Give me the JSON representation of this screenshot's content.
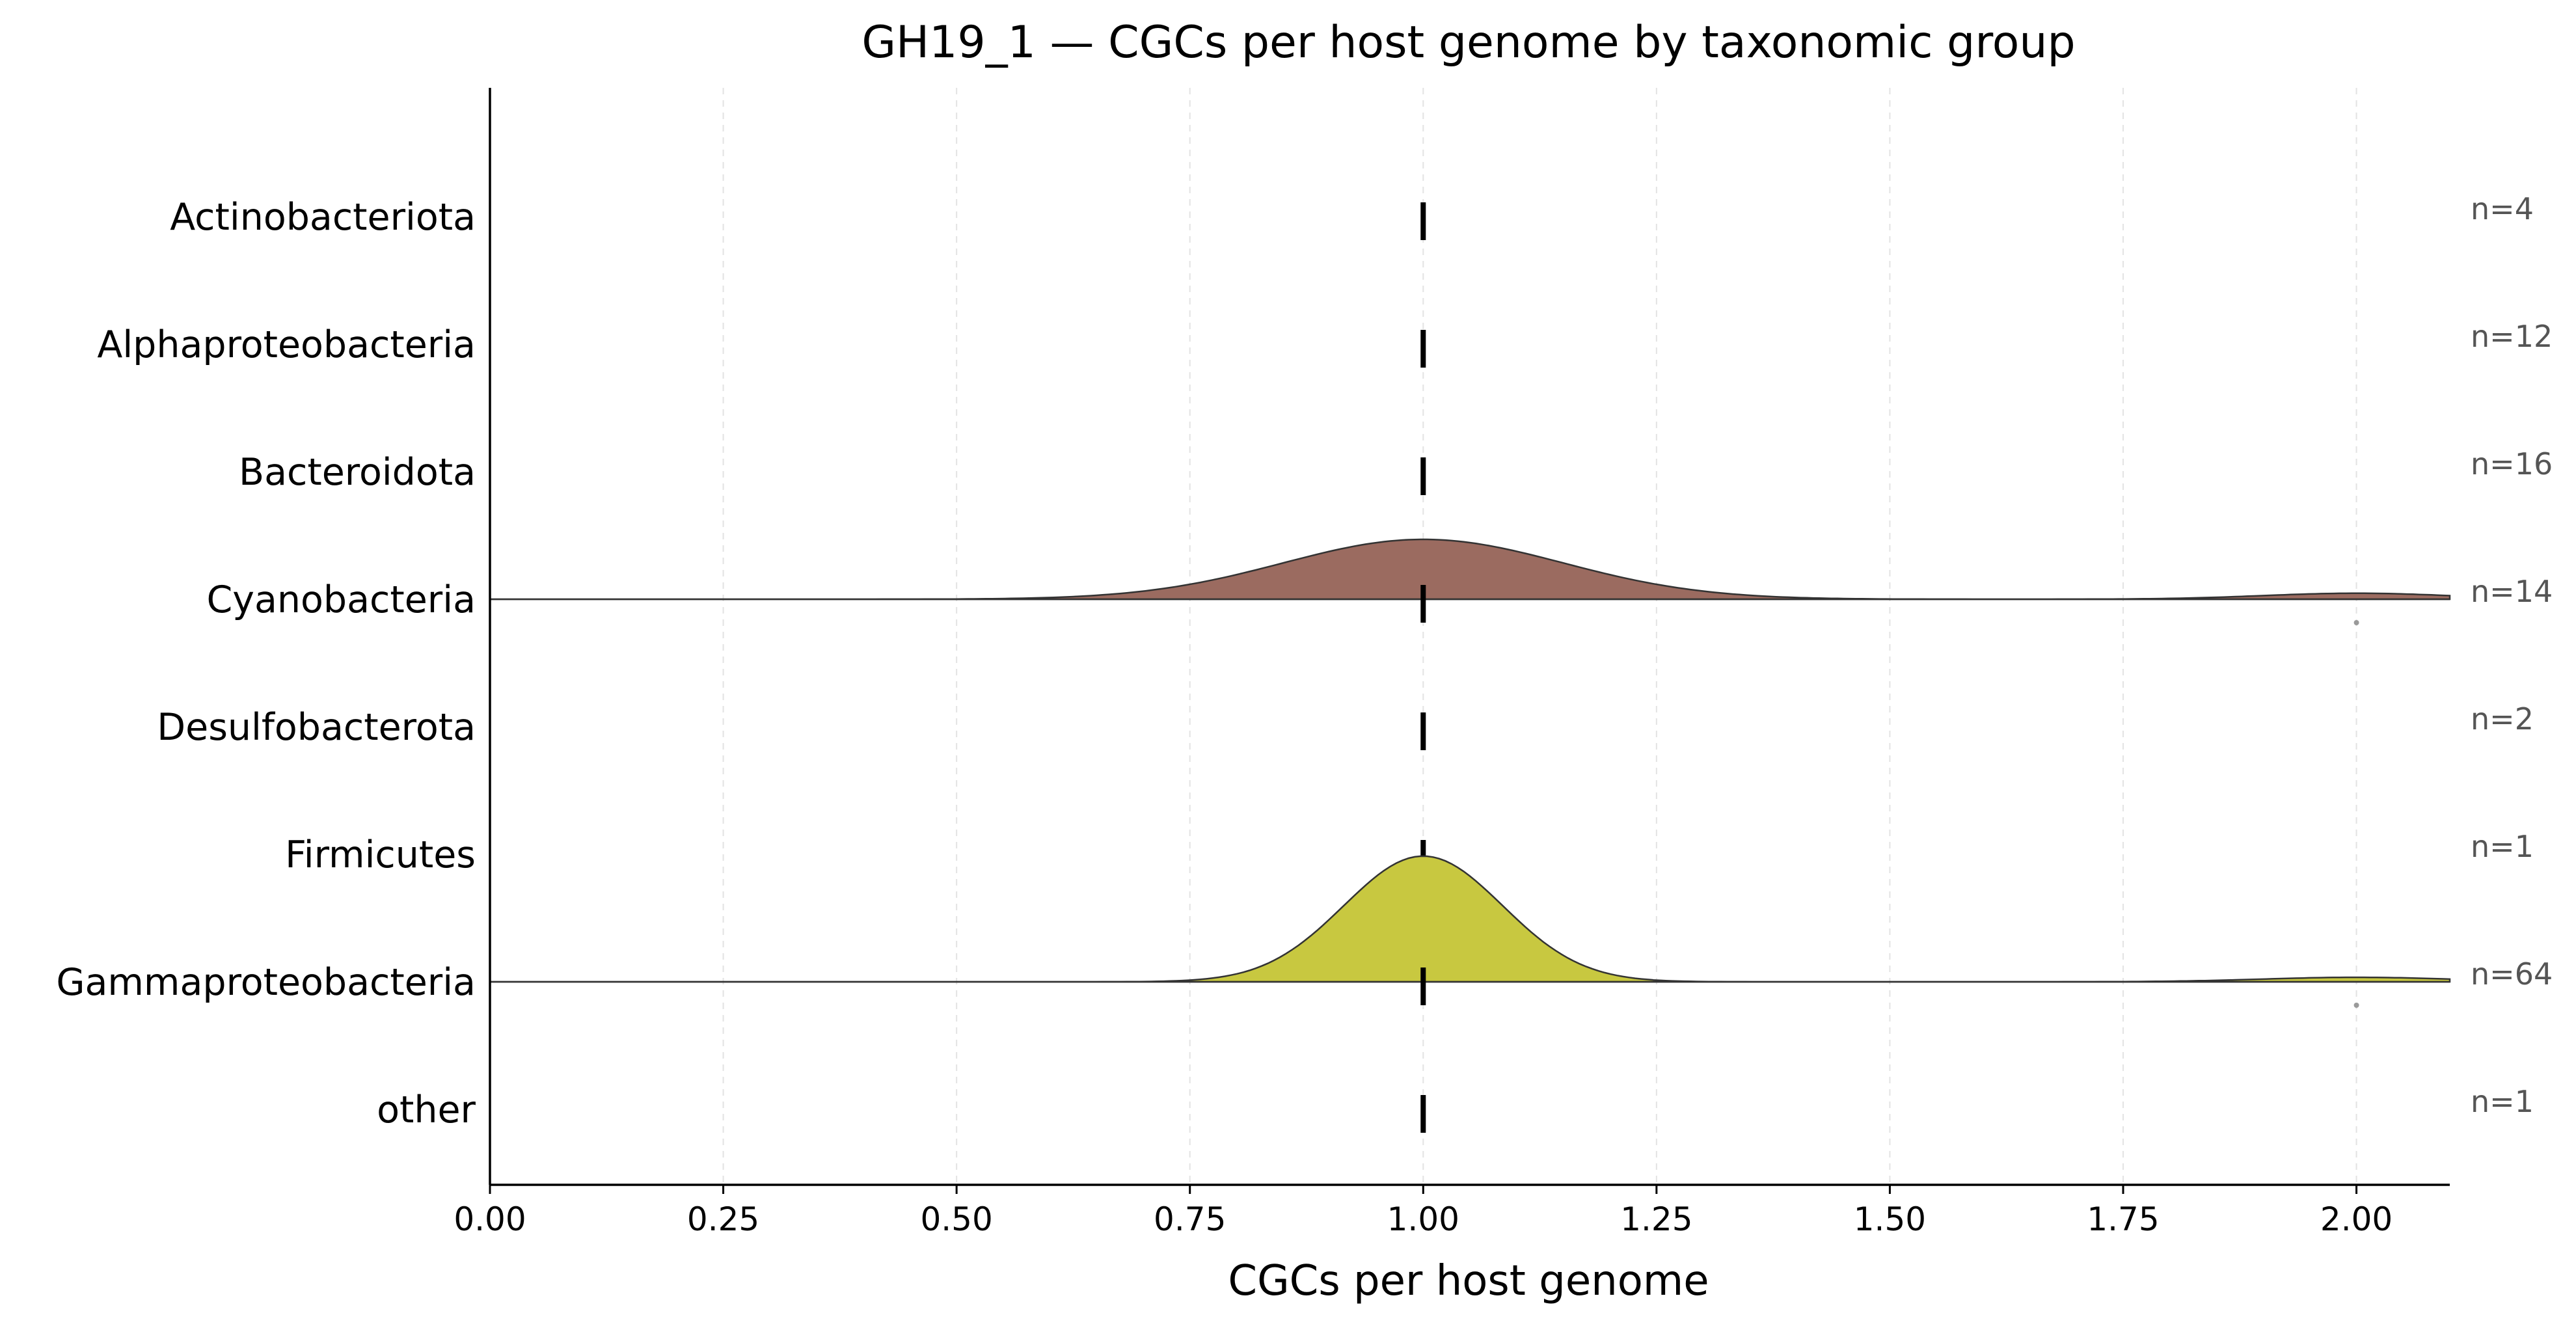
{
  "chart_data": {
    "type": "ridgeline",
    "title": "GH19_1 — CGCs per host genome by taxonomic group",
    "xlabel": "CGCs per host genome",
    "ylabel": "",
    "xlim": [
      0,
      2.1
    ],
    "xticks": [
      0,
      0.25,
      0.5,
      0.75,
      1.0,
      1.25,
      1.5,
      1.75,
      2.0
    ],
    "xtick_labels": [
      "0.00",
      "0.25",
      "0.50",
      "0.75",
      "1.00",
      "1.25",
      "1.50",
      "1.75",
      "2.00"
    ],
    "grid": "vertical-dashed",
    "groups": [
      {
        "name": "Actinobacteriota",
        "n_label": "n=4",
        "median": 1.0,
        "density": false
      },
      {
        "name": "Alphaproteobacteria",
        "n_label": "n=12",
        "median": 1.0,
        "density": false
      },
      {
        "name": "Bacteroidota",
        "n_label": "n=16",
        "median": 1.0,
        "density": false
      },
      {
        "name": "Cyanobacteria",
        "n_label": "n=14",
        "median": 1.0,
        "density": true,
        "color": "#9b6b60",
        "peak_x": 1.0,
        "peak_height": 0.2,
        "bandwidth": 0.15,
        "secondary_x": 2.0,
        "secondary_height": 0.02,
        "outliers": [
          2.0
        ]
      },
      {
        "name": "Desulfobacterota",
        "n_label": "n=2",
        "median": 1.0,
        "density": false
      },
      {
        "name": "Firmicutes",
        "n_label": "n=1",
        "median": 1.0,
        "density": false
      },
      {
        "name": "Gammaproteobacteria",
        "n_label": "n=64",
        "median": 1.0,
        "density": true,
        "color": "#c8c840",
        "peak_x": 1.0,
        "peak_height": 0.42,
        "bandwidth": 0.085,
        "secondary_x": 2.0,
        "secondary_height": 0.015,
        "outliers": [
          2.0
        ]
      },
      {
        "name": "other",
        "n_label": "n=1",
        "median": 1.0,
        "density": false
      }
    ]
  }
}
